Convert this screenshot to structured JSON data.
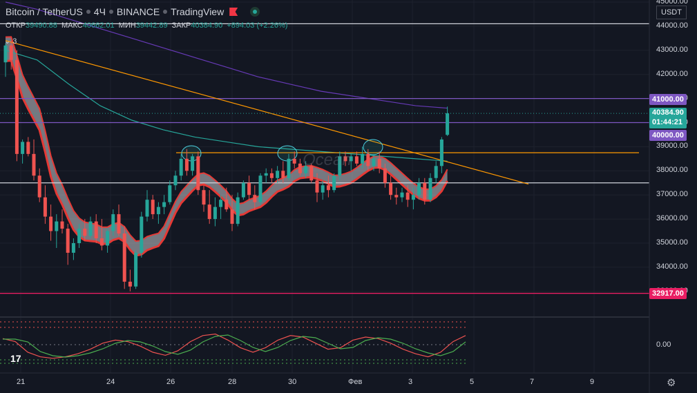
{
  "header": {
    "symbol": "Bitcoin / TetherUS",
    "interval": "4Ч",
    "exchange": "BINANCE",
    "platform": "TradingView"
  },
  "ohlc": {
    "open_label": "ОТКР",
    "open": "39490.88",
    "high_label": "МАКС",
    "high": "40662.01",
    "low_label": "МИН",
    "low": "39442.89",
    "close_label": "ЗАКР",
    "close": "40384.90",
    "change": "+894.03 (+2.26%)"
  },
  "indicators_collapsed": "3",
  "watermark": "Ocean",
  "unit_label": "USDT",
  "colors": {
    "background": "#131722",
    "up": "#26a69a",
    "down": "#ef5350",
    "resistance": "#7e57c2",
    "support_low": "#e91e63",
    "trendline": "#ff9800",
    "ma_cyan": "#26a69a",
    "ma_purple": "#673ab7",
    "cloud_edge": "#e53935"
  },
  "price_tags": {
    "r41000": "41000.00",
    "current": "40384.90",
    "timer": "01:44:21",
    "r40000": "40000.00",
    "s32917": "32917.00"
  },
  "oscillator_tick": "0.00",
  "chart_data": {
    "type": "candlestick",
    "title": "Bitcoin / TetherUS · 4Ч · BINANCE",
    "y_axis_ticks": [
      "45000.00",
      "44000.00",
      "43000.00",
      "42000.00",
      "41000.00",
      "40000.00",
      "39000.00",
      "38000.00",
      "37000.00",
      "36000.00",
      "35000.00",
      "34000.00",
      "33000.00"
    ],
    "x_axis_ticks": [
      "21",
      "24",
      "26",
      "28",
      "30",
      "Фев",
      "3",
      "5",
      "7",
      "9"
    ],
    "ylim": [
      32400,
      45000
    ],
    "levels": [
      {
        "price": 44100,
        "color": "#d1d4dc"
      },
      {
        "price": 41000,
        "color": "#7e57c2"
      },
      {
        "price": 40000,
        "color": "#7e57c2"
      },
      {
        "price": 38750,
        "color": "#ff9800"
      },
      {
        "price": 37500,
        "color": "#d1d4dc"
      },
      {
        "price": 32917,
        "color": "#e91e63"
      }
    ],
    "trendline": {
      "from": [
        0,
        43400
      ],
      "to": [
        154,
        37450
      ]
    },
    "candles": [
      [
        42500,
        43300,
        41900,
        43200
      ],
      [
        43200,
        43400,
        42200,
        42600
      ],
      [
        42600,
        43000,
        38400,
        38700
      ],
      [
        38700,
        39300,
        38300,
        39200
      ],
      [
        39200,
        39400,
        38600,
        38700
      ],
      [
        38700,
        39300,
        37600,
        37800
      ],
      [
        37800,
        38100,
        36700,
        36900
      ],
      [
        36900,
        37400,
        35800,
        36100
      ],
      [
        36100,
        36600,
        35100,
        35500
      ],
      [
        35500,
        36200,
        34800,
        35900
      ],
      [
        35900,
        36400,
        35400,
        35600
      ],
      [
        35600,
        35800,
        34100,
        34600
      ],
      [
        34600,
        35200,
        34300,
        35000
      ],
      [
        35000,
        35800,
        34800,
        35600
      ],
      [
        35600,
        36000,
        35100,
        35300
      ],
      [
        35300,
        36100,
        35200,
        35900
      ],
      [
        35900,
        36200,
        35000,
        35200
      ],
      [
        35200,
        36000,
        34700,
        34900
      ],
      [
        34900,
        35600,
        34600,
        35500
      ],
      [
        35500,
        36400,
        35300,
        36200
      ],
      [
        36200,
        36600,
        35300,
        35400
      ],
      [
        35400,
        35700,
        33100,
        33400
      ],
      [
        33400,
        33900,
        33000,
        33200
      ],
      [
        33200,
        34700,
        33100,
        34600
      ],
      [
        34600,
        36300,
        34400,
        36100
      ],
      [
        36100,
        37200,
        35900,
        36800
      ],
      [
        36800,
        37000,
        36000,
        36200
      ],
      [
        36200,
        36700,
        35800,
        36500
      ],
      [
        36500,
        37000,
        36200,
        36700
      ],
      [
        36700,
        37600,
        36600,
        37400
      ],
      [
        37400,
        38000,
        37200,
        37800
      ],
      [
        37800,
        38700,
        37600,
        38500
      ],
      [
        38500,
        38900,
        37800,
        38000
      ],
      [
        38000,
        38700,
        37800,
        38600
      ],
      [
        38600,
        38800,
        37000,
        37200
      ],
      [
        37200,
        37400,
        36300,
        36600
      ],
      [
        36600,
        37200,
        35800,
        36000
      ],
      [
        36000,
        36900,
        35700,
        36500
      ],
      [
        36500,
        37000,
        36000,
        36800
      ],
      [
        36800,
        37300,
        36300,
        36400
      ],
      [
        36400,
        37000,
        35500,
        35800
      ],
      [
        35800,
        37100,
        35700,
        36900
      ],
      [
        36900,
        37600,
        36800,
        37500
      ],
      [
        37500,
        37800,
        36800,
        37000
      ],
      [
        37000,
        37400,
        36400,
        36700
      ],
      [
        36700,
        37900,
        36600,
        37800
      ],
      [
        37800,
        38100,
        37500,
        37900
      ],
      [
        37900,
        38100,
        37500,
        37700
      ],
      [
        37700,
        38200,
        37500,
        38000
      ],
      [
        38000,
        38400,
        37500,
        37700
      ],
      [
        37700,
        38700,
        37600,
        38500
      ],
      [
        38500,
        38800,
        38100,
        38300
      ],
      [
        38300,
        38500,
        37800,
        37900
      ],
      [
        37900,
        38400,
        37700,
        38200
      ],
      [
        38200,
        38300,
        37500,
        37600
      ],
      [
        37600,
        37900,
        36700,
        37100
      ],
      [
        37100,
        37600,
        36800,
        37400
      ],
      [
        37400,
        37800,
        36900,
        37200
      ],
      [
        37200,
        37900,
        37100,
        37800
      ],
      [
        37800,
        38800,
        37600,
        38600
      ],
      [
        38600,
        38800,
        38200,
        38400
      ],
      [
        38400,
        38700,
        38000,
        38600
      ],
      [
        38600,
        38800,
        38200,
        38300
      ],
      [
        38300,
        39000,
        38100,
        38700
      ],
      [
        38700,
        38900,
        38000,
        38200
      ],
      [
        38200,
        38700,
        38000,
        38500
      ],
      [
        38500,
        38800,
        37900,
        38100
      ],
      [
        38100,
        38300,
        37300,
        37500
      ],
      [
        37500,
        37800,
        36800,
        37000
      ],
      [
        37000,
        37300,
        36600,
        36900
      ],
      [
        36900,
        37300,
        36700,
        37100
      ],
      [
        37100,
        37400,
        36500,
        36800
      ],
      [
        36800,
        37300,
        36400,
        37000
      ],
      [
        37000,
        37700,
        36800,
        37500
      ],
      [
        37500,
        37700,
        36600,
        36800
      ],
      [
        36800,
        37900,
        36700,
        37700
      ],
      [
        37700,
        38400,
        37500,
        38200
      ],
      [
        38200,
        39400,
        37900,
        39300
      ],
      [
        39490.88,
        40662.01,
        39442.89,
        40384.9
      ]
    ],
    "series": [
      {
        "name": "",
        "color": "#673ab7",
        "values": [
          45000,
          44700,
          44300,
          43900,
          43500,
          43100,
          42700,
          42300,
          41900,
          41600,
          41300,
          41100,
          40900,
          40700,
          40600
        ]
      },
      {
        "name": "",
        "color": "#26a69a",
        "values": [
          43000,
          42600,
          41600,
          40700,
          40100,
          39700,
          39400,
          39200,
          39000,
          38900,
          38800,
          38700,
          38600,
          38500,
          38400
        ]
      }
    ]
  }
}
